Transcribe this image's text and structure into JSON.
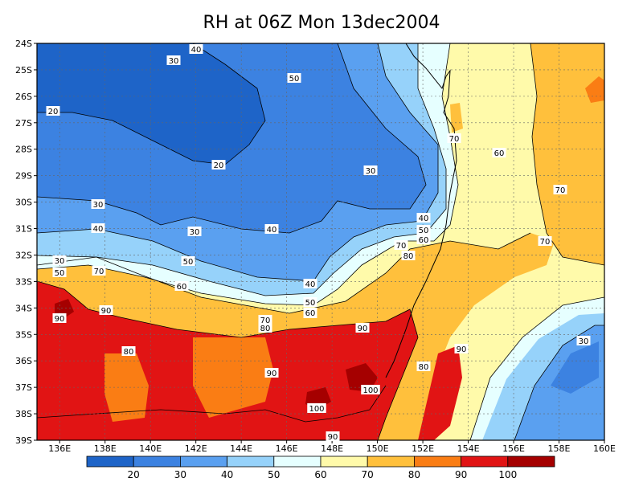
{
  "title": "RH at 06Z Mon 13dec2004",
  "map": {
    "lat_labels": [
      "24S",
      "25S",
      "26S",
      "27S",
      "28S",
      "29S",
      "30S",
      "31S",
      "32S",
      "33S",
      "34S",
      "35S",
      "36S",
      "37S",
      "38S",
      "39S"
    ],
    "lon_labels": [
      "136E",
      "138E",
      "140E",
      "142E",
      "144E",
      "146E",
      "148E",
      "150E",
      "152E",
      "154E",
      "156E",
      "158E",
      "160E"
    ],
    "contour_labels": [
      "40",
      "30",
      "50",
      "20",
      "20",
      "30",
      "70",
      "60",
      "30",
      "40",
      "50",
      "60",
      "70",
      "70",
      "40",
      "30",
      "40",
      "30",
      "50",
      "70",
      "50",
      "60",
      "80",
      "60",
      "70",
      "80",
      "40",
      "50",
      "60",
      "90",
      "90",
      "70",
      "80",
      "90",
      "90",
      "90",
      "90",
      "80",
      "30",
      "100",
      "100",
      "90",
      "90"
    ]
  },
  "colorbar": {
    "ticks": [
      "20",
      "30",
      "40",
      "50",
      "60",
      "70",
      "80",
      "90",
      "100"
    ],
    "colors": [
      "#1e64c8",
      "#3c82e1",
      "#5aa0f0",
      "#96d2fa",
      "#e6ffff",
      "#fffaaa",
      "#ffc03c",
      "#fa7d14",
      "#e11414",
      "#a50000"
    ]
  },
  "colors": {
    "rh_20": "#1e64c8",
    "rh_30": "#3c82e1",
    "rh_40": "#5aa0f0",
    "rh_50": "#96d2fa",
    "rh_60": "#e6ffff",
    "rh_70": "#fffaaa",
    "rh_80": "#ffc03c",
    "rh_90": "#fa7d14",
    "rh_100": "#e11414",
    "rh_max": "#a50000"
  }
}
